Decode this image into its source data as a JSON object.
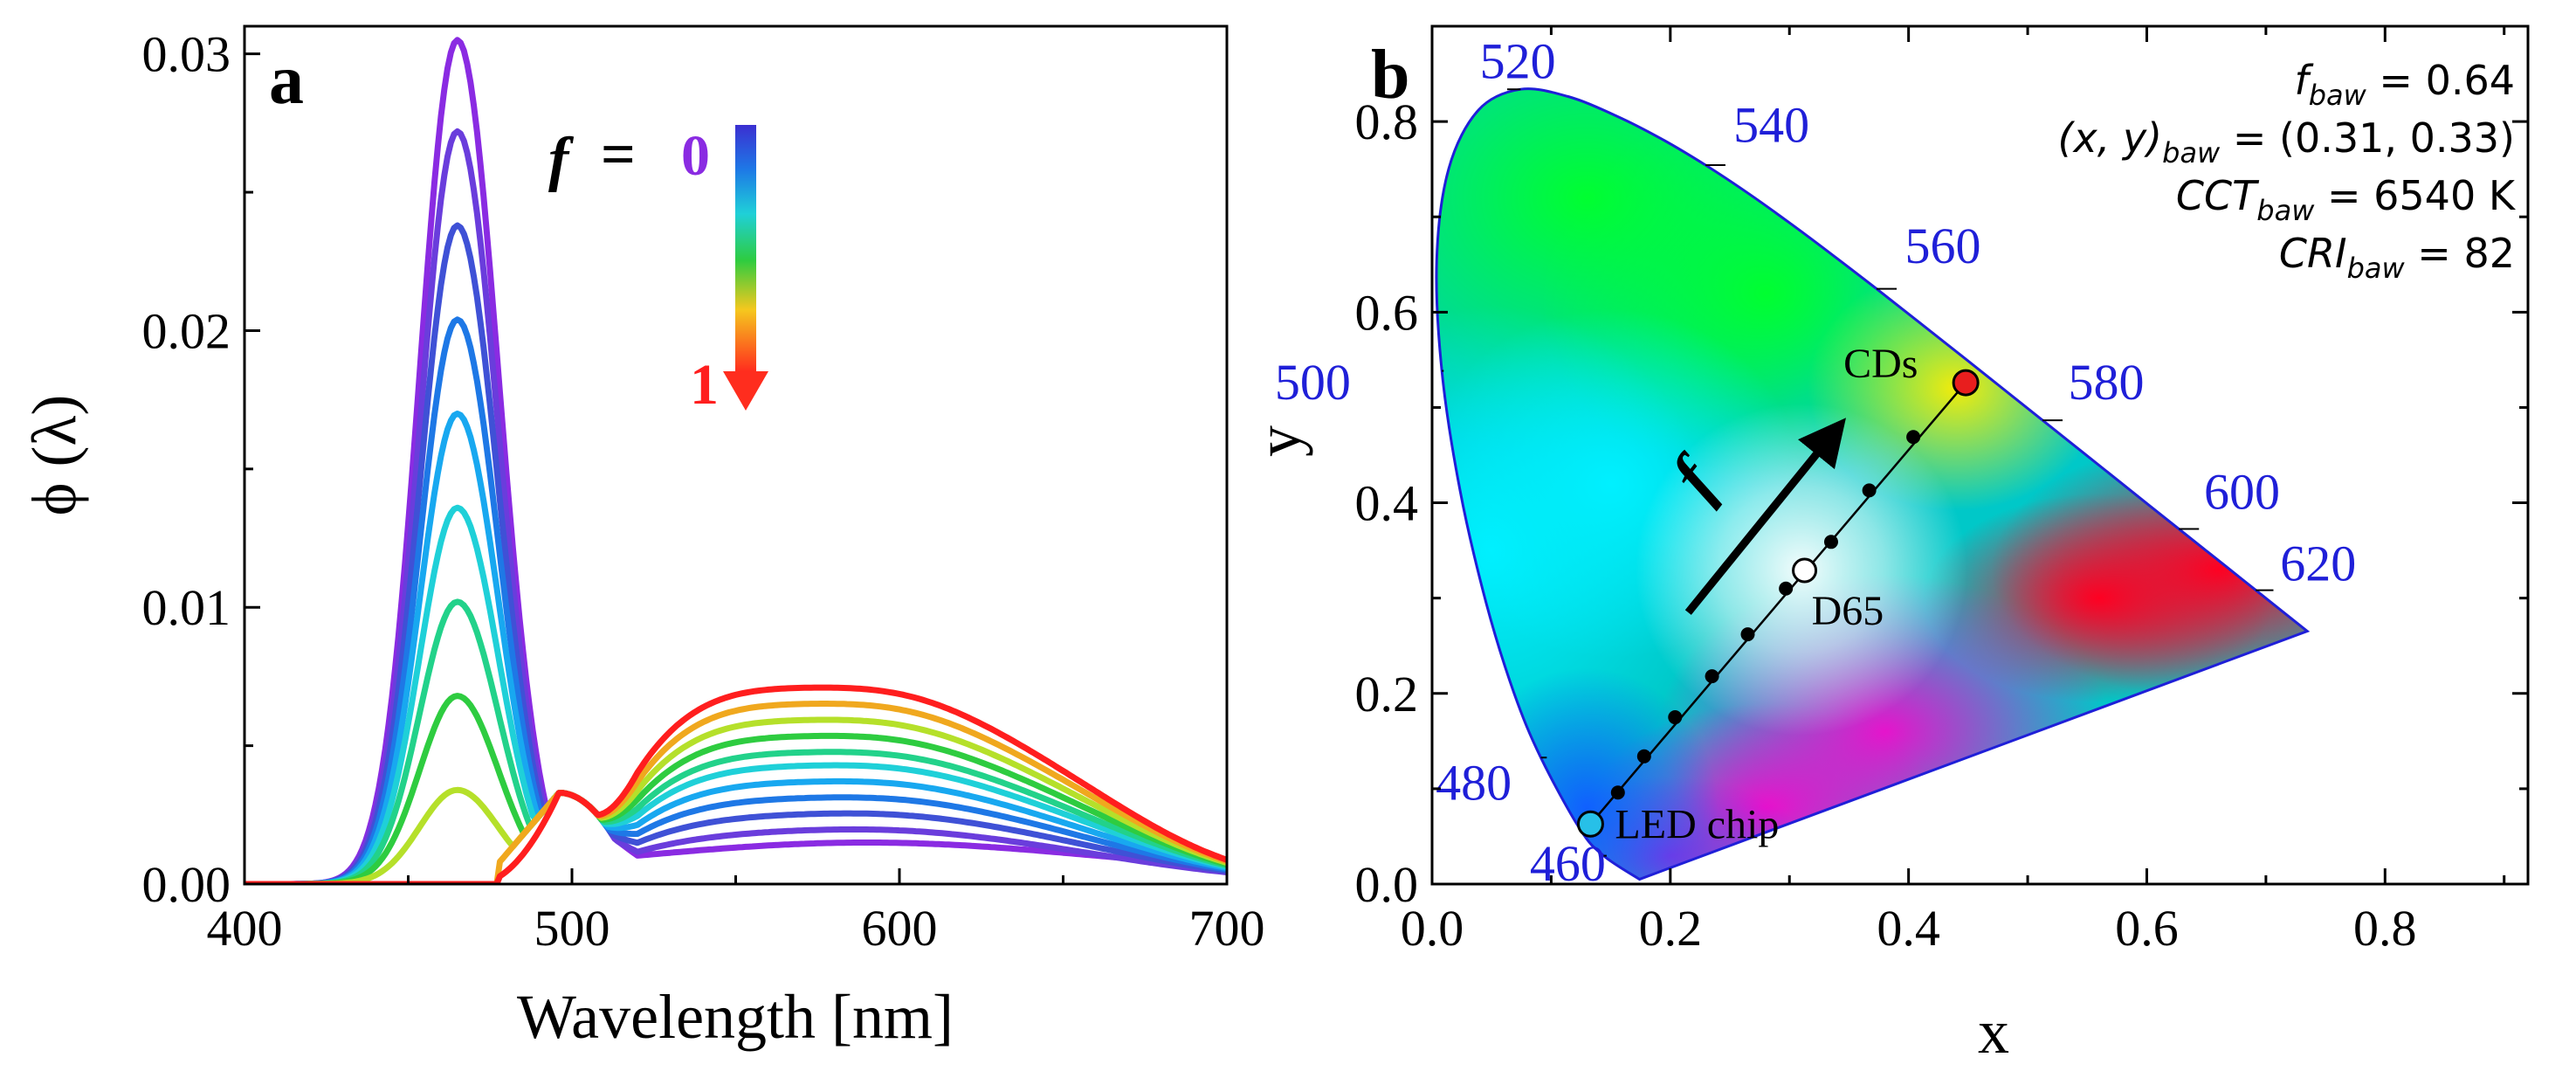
{
  "chart_data": [
    {
      "panel": "a",
      "type": "line",
      "xlabel": "Wavelength [nm]",
      "ylabel": "ϕ (λ)",
      "xlim": [
        400,
        700
      ],
      "ylim": [
        0,
        0.031
      ],
      "xticks": [
        "400",
        "500",
        "600",
        "700"
      ],
      "yticks": [
        "0.00",
        "0.01",
        "0.02",
        "0.03"
      ],
      "ytick_values": [
        0,
        0.01,
        0.02,
        0.03
      ],
      "xtick_values": [
        400,
        500,
        600,
        700
      ],
      "blue_peak_nm": 465,
      "isosbestic_nm": 496,
      "legend": {
        "symbol": "f",
        "eq": "=",
        "top": "0",
        "bottom": "1"
      },
      "series": [
        {
          "f": 0.0,
          "color": "#8a2be2",
          "blue_peak": 0.0305,
          "yellow_level": 0.0
        },
        {
          "f": 0.1,
          "color": "#6a3ddc",
          "blue_peak": 0.0272,
          "yellow_level": 0.0009
        },
        {
          "f": 0.2,
          "color": "#3f51d6",
          "blue_peak": 0.0238,
          "yellow_level": 0.0016
        },
        {
          "f": 0.3,
          "color": "#1e78e6",
          "blue_peak": 0.0204,
          "yellow_level": 0.0023
        },
        {
          "f": 0.4,
          "color": "#18a8f0",
          "blue_peak": 0.017,
          "yellow_level": 0.003
        },
        {
          "f": 0.5,
          "color": "#1fd0d8",
          "blue_peak": 0.0136,
          "yellow_level": 0.0037
        },
        {
          "f": 0.6,
          "color": "#22d28a",
          "blue_peak": 0.0102,
          "yellow_level": 0.0043
        },
        {
          "f": 0.7,
          "color": "#2ecc40",
          "blue_peak": 0.0068,
          "yellow_level": 0.005
        },
        {
          "f": 0.8,
          "color": "#b5e02a",
          "blue_peak": 0.0034,
          "yellow_level": 0.0057
        },
        {
          "f": 0.9,
          "color": "#f0a81e",
          "blue_peak": 0.0,
          "yellow_level": 0.0064
        },
        {
          "f": 1.0,
          "color": "#ff1e1e",
          "blue_peak": 0.0,
          "yellow_level": 0.0071
        }
      ]
    },
    {
      "panel": "b",
      "type": "scatter",
      "xlabel": "x",
      "ylabel": "y",
      "xlim": [
        0,
        0.92
      ],
      "ylim": [
        0,
        0.9
      ],
      "xticks": [
        "0.0",
        "0.2",
        "0.4",
        "0.6",
        "0.8"
      ],
      "yticks": [
        "0.0",
        "0.2",
        "0.4",
        "0.6",
        "0.8"
      ],
      "xtick_values": [
        0,
        0.2,
        0.4,
        0.6,
        0.8
      ],
      "ytick_values": [
        0,
        0.2,
        0.4,
        0.6,
        0.8
      ],
      "locus": [
        [
          0.1741,
          0.005
        ],
        [
          0.144,
          0.0297
        ],
        [
          0.1241,
          0.0578
        ],
        [
          0.0913,
          0.1327
        ],
        [
          0.0687,
          0.2007
        ],
        [
          0.0454,
          0.295
        ],
        [
          0.0235,
          0.4127
        ],
        [
          0.0082,
          0.5384
        ],
        [
          0.0039,
          0.6548
        ],
        [
          0.0139,
          0.7502
        ],
        [
          0.0389,
          0.812
        ],
        [
          0.0743,
          0.8338
        ],
        [
          0.1142,
          0.8262
        ],
        [
          0.1547,
          0.8059
        ],
        [
          0.1929,
          0.7816
        ],
        [
          0.2296,
          0.7543
        ],
        [
          0.2658,
          0.7243
        ],
        [
          0.3016,
          0.6923
        ],
        [
          0.3373,
          0.6589
        ],
        [
          0.3731,
          0.6245
        ],
        [
          0.4087,
          0.5896
        ],
        [
          0.4441,
          0.5547
        ],
        [
          0.4788,
          0.5202
        ],
        [
          0.5125,
          0.4866
        ],
        [
          0.5448,
          0.4544
        ],
        [
          0.5752,
          0.4242
        ],
        [
          0.6029,
          0.3965
        ],
        [
          0.627,
          0.3725
        ],
        [
          0.6482,
          0.3514
        ],
        [
          0.6658,
          0.334
        ],
        [
          0.6915,
          0.3083
        ],
        [
          0.714,
          0.2859
        ],
        [
          0.7347,
          0.2653
        ]
      ],
      "wavelength_labels": [
        {
          "label": "460",
          "x": 0.144,
          "y": 0.0297,
          "lx": 0.082,
          "ly": 0.02
        },
        {
          "label": "480",
          "x": 0.0913,
          "y": 0.1327,
          "lx": 0.003,
          "ly": 0.105
        },
        {
          "label": "500",
          "x": 0.0082,
          "y": 0.5384,
          "lx": -0.132,
          "ly": 0.525
        },
        {
          "label": "520",
          "x": 0.0743,
          "y": 0.8338,
          "lx": 0.04,
          "ly": 0.862
        },
        {
          "label": "540",
          "x": 0.2296,
          "y": 0.7543,
          "lx": 0.253,
          "ly": 0.795
        },
        {
          "label": "560",
          "x": 0.3731,
          "y": 0.6245,
          "lx": 0.397,
          "ly": 0.668
        },
        {
          "label": "580",
          "x": 0.5125,
          "y": 0.4866,
          "lx": 0.534,
          "ly": 0.525
        },
        {
          "label": "600",
          "x": 0.627,
          "y": 0.3725,
          "lx": 0.648,
          "ly": 0.41
        },
        {
          "label": "620",
          "x": 0.6915,
          "y": 0.3083,
          "lx": 0.712,
          "ly": 0.335
        }
      ],
      "points": {
        "led_chip": {
          "label": "LED chip",
          "x": 0.133,
          "y": 0.063,
          "color": "#27c0e8"
        },
        "cds": {
          "label": "CDs",
          "x": 0.448,
          "y": 0.526,
          "color": "#e81e1e"
        },
        "d65": {
          "label": "D65",
          "x": 0.3127,
          "y": 0.329,
          "color": "#ffffff"
        },
        "mix": [
          [
            0.156,
            0.096
          ],
          [
            0.178,
            0.134
          ],
          [
            0.204,
            0.175
          ],
          [
            0.235,
            0.218
          ],
          [
            0.265,
            0.262
          ],
          [
            0.297,
            0.31
          ],
          [
            0.335,
            0.359
          ],
          [
            0.367,
            0.413
          ],
          [
            0.404,
            0.469
          ]
        ]
      },
      "arrow": {
        "label": "f",
        "from": [
          0.215,
          0.285
        ],
        "to": [
          0.335,
          0.47
        ]
      },
      "info": [
        {
          "lhs": "f",
          "sub": "baw",
          "rhs": "= 0.64"
        },
        {
          "lhs": "(x, y)",
          "sub": "baw",
          "rhs": "= (0.31, 0.33)"
        },
        {
          "lhs": "CCT",
          "sub": "baw",
          "rhs": "= 6540 K"
        },
        {
          "lhs": "CRI",
          "sub": "baw",
          "rhs": "= 82"
        }
      ]
    }
  ]
}
